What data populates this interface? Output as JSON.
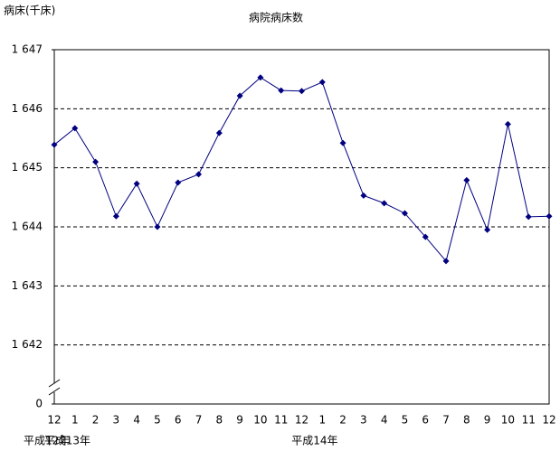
{
  "chart_data": {
    "type": "line",
    "title": "病院病床数",
    "y_label": "病床(千床)",
    "categories": [
      "12",
      "1",
      "2",
      "3",
      "4",
      "5",
      "6",
      "7",
      "8",
      "9",
      "10",
      "11",
      "12",
      "1",
      "2",
      "3",
      "4",
      "5",
      "6",
      "7",
      "8",
      "9",
      "10",
      "11",
      "12"
    ],
    "year_labels": [
      {
        "label": "平成12年",
        "at": 0
      },
      {
        "label": "平成13年",
        "at": 1
      },
      {
        "label": "平成14年",
        "at": 13
      }
    ],
    "series": [
      {
        "name": "病院病床数",
        "color": "#000080",
        "values": [
          1645.39,
          1645.67,
          1645.1,
          1644.18,
          1644.73,
          1644.0,
          1644.75,
          1644.89,
          1645.59,
          1646.22,
          1646.53,
          1646.31,
          1646.3,
          1646.45,
          1645.42,
          1644.53,
          1644.4,
          1644.23,
          1643.83,
          1643.42,
          1644.79,
          1643.95,
          1645.74,
          1644.17,
          1644.18
        ]
      }
    ],
    "ylim": [
      1641,
      1647
    ],
    "axis_break": true,
    "yticks": [
      {
        "value": 0,
        "label": "0"
      },
      {
        "value": 1642,
        "label": "1 642"
      },
      {
        "value": 1643,
        "label": "1 643"
      },
      {
        "value": 1644,
        "label": "1 644"
      },
      {
        "value": 1645,
        "label": "1 645"
      },
      {
        "value": 1646,
        "label": "1 646"
      },
      {
        "value": 1647,
        "label": "1 647"
      }
    ],
    "grid": true
  }
}
